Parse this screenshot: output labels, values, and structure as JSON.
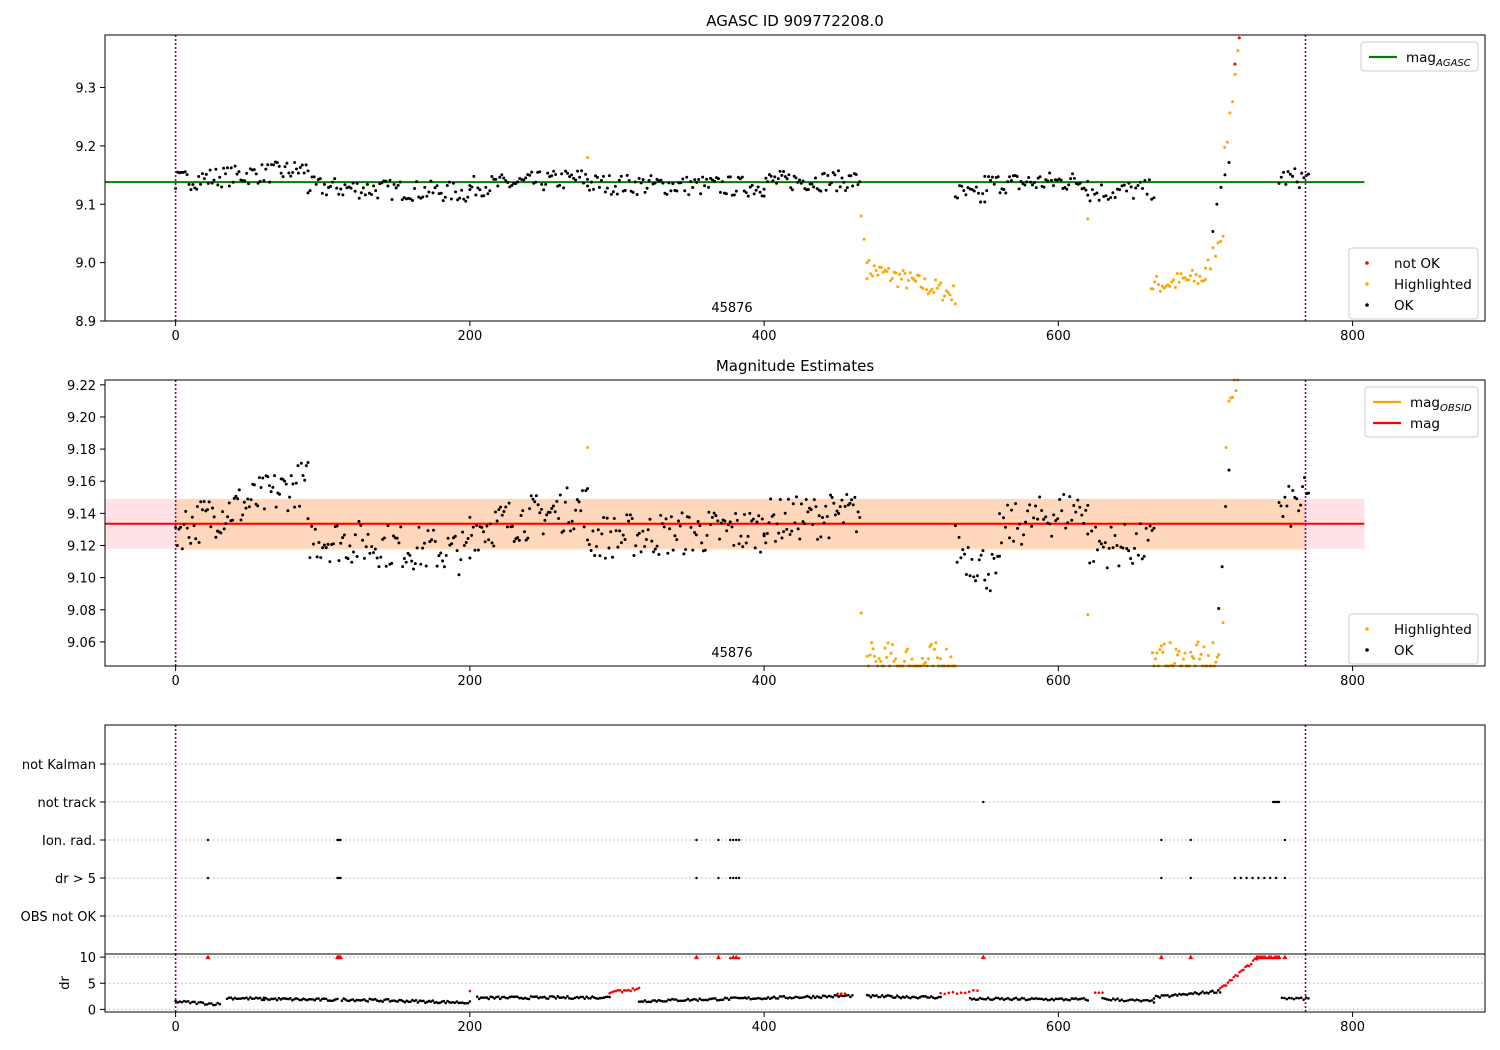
{
  "figure": {
    "obsid_label": "45876"
  },
  "chart_data": [
    {
      "type": "scatter",
      "title": "AGASC ID 909772208.0",
      "x_range": [
        -48,
        890
      ],
      "y_range": [
        8.9,
        9.39
      ],
      "x_ticks": [
        "0",
        "200",
        "400",
        "600",
        "800"
      ],
      "x_tick_values": [
        0,
        200,
        400,
        600,
        800
      ],
      "y_ticks": [
        "8.9",
        "9.0",
        "9.1",
        "9.2",
        "9.3"
      ],
      "y_tick_values": [
        8.9,
        9.0,
        9.1,
        9.2,
        9.3
      ],
      "vlines": [
        0,
        768
      ],
      "vline_color": "#800080",
      "lines": [
        {
          "name": "mag",
          "subscript": "AGASC",
          "y": 9.138,
          "x0": -48,
          "x1": 808,
          "color": "#008000"
        }
      ],
      "series": [
        {
          "name": "not OK",
          "color": "#ff0000",
          "segments": [
            [
              720,
              723,
              9.34,
              9.385,
              2
            ]
          ]
        },
        {
          "name": "Highlighted",
          "color": "#ffa500",
          "segments": [
            [
              466,
              470,
              9.08,
              9.0,
              3
            ],
            [
              470,
              530,
              8.99,
              8.945,
              50
            ],
            [
              663,
              700,
              8.96,
              8.975,
              30
            ],
            [
              700,
              712,
              8.98,
              9.06,
              8
            ],
            [
              713,
              722,
              9.18,
              9.36,
              6
            ],
            [
              280,
              280,
              9.18,
              9.18,
              1
            ],
            [
              620,
              620,
              9.075,
              9.075,
              1
            ]
          ]
        },
        {
          "name": "OK",
          "color": "#000000",
          "segments": [
            [
              0,
              90,
              9.14,
              9.16,
              70
            ],
            [
              90,
              200,
              9.13,
              9.12,
              80
            ],
            [
              200,
              280,
              9.13,
              9.145,
              60
            ],
            [
              280,
              400,
              9.135,
              9.13,
              90
            ],
            [
              400,
              465,
              9.14,
              9.14,
              55
            ],
            [
              530,
              550,
              9.12,
              9.11,
              15
            ],
            [
              550,
              620,
              9.135,
              9.14,
              55
            ],
            [
              620,
              665,
              9.12,
              9.125,
              30
            ],
            [
              705,
              716,
              9.06,
              9.17,
              5
            ],
            [
              750,
              770,
              9.145,
              9.145,
              14
            ]
          ]
        }
      ],
      "legend_top": {
        "placement": "top-right",
        "entries": [
          {
            "label": "mag",
            "subscript": "AGASC",
            "color": "#008000"
          }
        ]
      },
      "legend_bottom": {
        "placement": "bottom-right",
        "entries": [
          {
            "label": "not OK",
            "color": "#ff0000"
          },
          {
            "label": "Highlighted",
            "color": "#ffa500"
          },
          {
            "label": "OK",
            "color": "#000000"
          }
        ]
      }
    },
    {
      "type": "scatter",
      "title": "Magnitude Estimates",
      "x_range": [
        -48,
        890
      ],
      "y_range": [
        9.045,
        9.223
      ],
      "x_ticks": [
        "0",
        "200",
        "400",
        "600",
        "800"
      ],
      "x_tick_values": [
        0,
        200,
        400,
        600,
        800
      ],
      "y_ticks": [
        "9.06",
        "9.08",
        "9.10",
        "9.12",
        "9.14",
        "9.16",
        "9.18",
        "9.20",
        "9.22"
      ],
      "y_tick_values": [
        9.06,
        9.08,
        9.1,
        9.12,
        9.14,
        9.16,
        9.18,
        9.2,
        9.22
      ],
      "vlines": [
        0,
        768
      ],
      "vline_color": "#800080",
      "bands": [
        {
          "y0": 9.118,
          "y1": 9.149,
          "x0": -48,
          "x1": 808,
          "color": "#ffb6c1",
          "opacity": 0.4
        },
        {
          "y0": 9.117,
          "y1": 9.149,
          "x0": 0,
          "x1": 768,
          "color": "#ffa500",
          "opacity": 0.18
        }
      ],
      "lines": [
        {
          "name": "mag",
          "subscript": "OBSID",
          "y": 9.1335,
          "x0": 0,
          "x1": 768,
          "color": "#ffa500"
        },
        {
          "name": "mag",
          "y": 9.1335,
          "x0": -48,
          "x1": 808,
          "color": "#ff0000"
        }
      ],
      "series": [
        {
          "name": "Highlighted",
          "color": "#ffa500",
          "segments": [
            [
              470,
              530,
              9.046,
              9.046,
              60
            ],
            [
              664,
              708,
              9.046,
              9.046,
              45
            ],
            [
              280,
              280,
              9.181,
              9.181,
              1
            ],
            [
              466,
              466,
              9.078,
              9.078,
              1
            ],
            [
              620,
              620,
              9.077,
              9.077,
              1
            ],
            [
              709,
              712,
              9.052,
              9.072,
              2
            ],
            [
              714,
              716,
              9.181,
              9.181,
              1
            ],
            [
              716,
              722,
              9.221,
              9.221,
              6
            ]
          ]
        },
        {
          "name": "OK",
          "color": "#000000",
          "segments": [
            [
              0,
              90,
              9.13,
              9.16,
              80
            ],
            [
              90,
              200,
              9.125,
              9.115,
              90
            ],
            [
              200,
              280,
              9.13,
              9.145,
              70
            ],
            [
              280,
              400,
              9.125,
              9.13,
              100
            ],
            [
              400,
              465,
              9.135,
              9.14,
              60
            ],
            [
              530,
              560,
              9.12,
              9.1,
              25
            ],
            [
              560,
              620,
              9.13,
              9.145,
              45
            ],
            [
              620,
              665,
              9.12,
              9.12,
              35
            ],
            [
              709,
              716,
              9.083,
              9.175,
              4
            ],
            [
              750,
              770,
              9.14,
              9.15,
              16
            ]
          ]
        }
      ],
      "legend_top": {
        "placement": "top-right",
        "entries": [
          {
            "label": "mag",
            "subscript": "OBSID",
            "color": "#ffa500"
          },
          {
            "label": "mag",
            "color": "#ff0000"
          }
        ]
      },
      "legend_bottom": {
        "placement": "bottom-right",
        "entries": [
          {
            "label": "Highlighted",
            "color": "#ffa500"
          },
          {
            "label": "OK",
            "color": "#000000"
          }
        ]
      }
    },
    {
      "type": "scatter",
      "title": "",
      "x_range": [
        -48,
        890
      ],
      "categories": [
        "OBS not OK",
        "dr > 5",
        "Ion. rad.",
        "not track",
        "not Kalman"
      ],
      "events": {
        "not Kalman": [],
        "not track": [
          549,
          746,
          747,
          748,
          749,
          750
        ],
        "Ion. rad.": [
          22,
          110,
          111,
          112,
          354,
          369,
          377,
          379,
          381,
          383,
          670,
          690,
          754
        ],
        "dr > 5": [
          22,
          110,
          111,
          112,
          354,
          369,
          377,
          379,
          381,
          383,
          670,
          690,
          720,
          724,
          728,
          732,
          736,
          740,
          744,
          748,
          754
        ],
        "OBS not OK": []
      },
      "vlines": [
        0,
        768
      ],
      "vline_color": "#800080"
    },
    {
      "type": "scatter",
      "title": "",
      "ylabel": "dr",
      "x_range": [
        -48,
        890
      ],
      "y_range": [
        -0.5,
        10.6
      ],
      "x_ticks": [
        "0",
        "200",
        "400",
        "600",
        "800"
      ],
      "x_tick_values": [
        0,
        200,
        400,
        600,
        800
      ],
      "y_ticks": [
        "0",
        "5",
        "10"
      ],
      "y_tick_values": [
        0,
        5,
        10
      ],
      "vlines": [
        0,
        768
      ],
      "vline_color": "#800080",
      "series": [
        {
          "name": "dr",
          "color": "#000000",
          "segments": [
            [
              0,
              30,
              1.5,
              1.0,
              22
            ],
            [
              35,
              60,
              2.2,
              2.0,
              20
            ],
            [
              60,
              110,
              2.0,
              1.8,
              40
            ],
            [
              113,
              200,
              1.9,
              1.3,
              70
            ],
            [
              205,
              295,
              2.2,
              2.3,
              70
            ],
            [
              315,
              460,
              1.6,
              2.6,
              110
            ],
            [
              470,
              520,
              2.5,
              2.3,
              40
            ],
            [
              540,
              620,
              2.0,
              1.9,
              60
            ],
            [
              630,
              665,
              2.0,
              1.5,
              25
            ],
            [
              665,
              710,
              2.3,
              3.5,
              35
            ],
            [
              752,
              770,
              2.2,
              2.0,
              12
            ]
          ]
        },
        {
          "name": "dr > 5",
          "color": "#ff0000",
          "segments": [
            [
              295,
              315,
              3.2,
              4.0,
              15
            ],
            [
              710,
              735,
              3.8,
              9.8,
              20
            ],
            [
              735,
              750,
              10,
              10,
              12
            ],
            [
              22,
              22,
              10,
              10,
              1
            ],
            [
              110,
              112,
              10,
              10,
              3
            ],
            [
              354,
              354,
              10,
              10,
              1
            ],
            [
              369,
              369,
              10,
              10,
              1
            ],
            [
              377,
              383,
              10,
              10,
              4
            ],
            [
              549,
              549,
              10,
              10,
              1
            ],
            [
              670,
              670,
              10,
              10,
              1
            ],
            [
              690,
              690,
              10,
              10,
              1
            ],
            [
              754,
              754,
              10,
              10,
              1
            ],
            [
              200,
              200,
              3.5,
              3.5,
              1
            ],
            [
              450,
              455,
              3.0,
              3.0,
              3
            ],
            [
              520,
              545,
              3.0,
              3.5,
              10
            ],
            [
              625,
              630,
              3.2,
              3.2,
              3
            ]
          ]
        }
      ]
    }
  ]
}
